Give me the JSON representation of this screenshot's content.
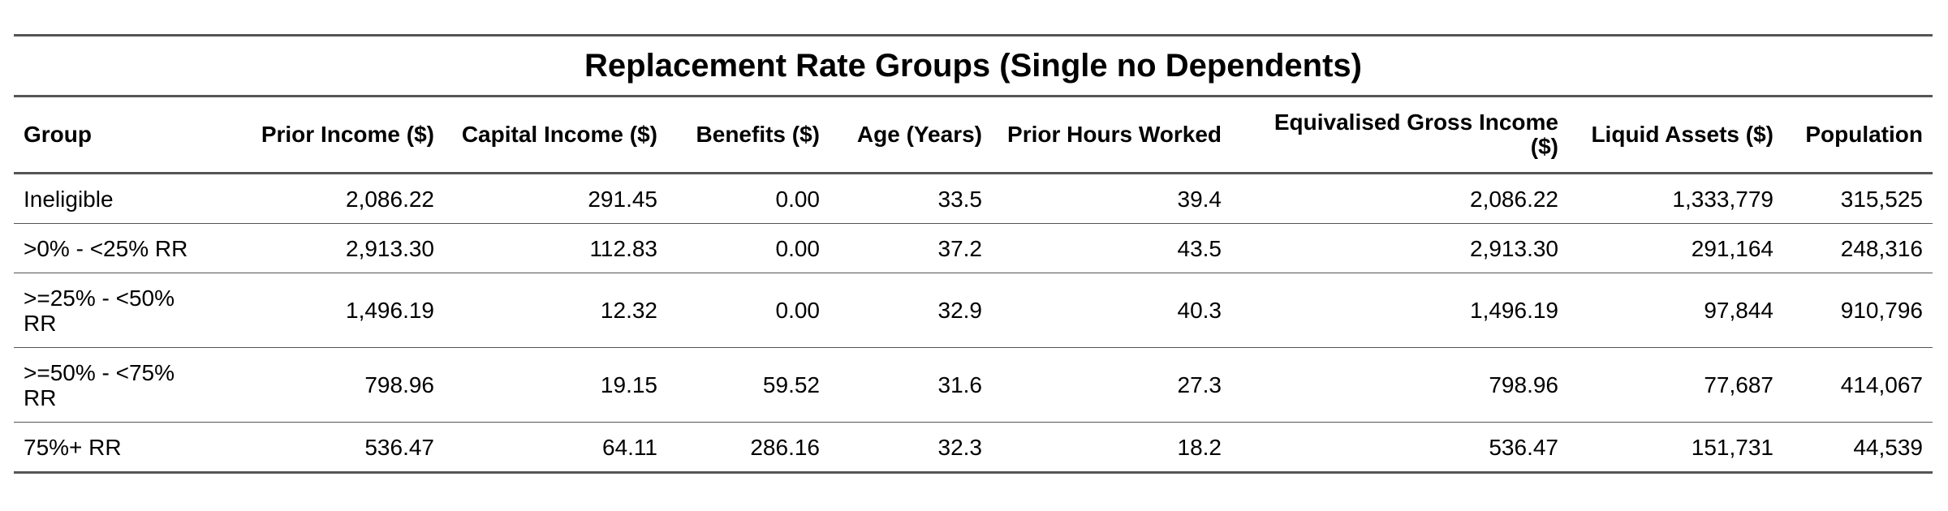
{
  "table": {
    "title": "Replacement Rate Groups (Single no Dependents)",
    "columns": [
      "Group",
      "Prior Income ($)",
      "Capital Income ($)",
      "Benefits ($)",
      "Age (Years)",
      "Prior Hours Worked",
      "Equivalised Gross Income ($)",
      "Liquid Assets ($)",
      "Population"
    ],
    "rows": [
      [
        "Ineligible",
        "2,086.22",
        "291.45",
        "0.00",
        "33.5",
        "39.4",
        "2,086.22",
        "1,333,779",
        "315,525"
      ],
      [
        ">0% - <25% RR",
        "2,913.30",
        "112.83",
        "0.00",
        "37.2",
        "43.5",
        "2,913.30",
        "291,164",
        "248,316"
      ],
      [
        ">=25% - <50% RR",
        "1,496.19",
        "12.32",
        "0.00",
        "32.9",
        "40.3",
        "1,496.19",
        "97,844",
        "910,796"
      ],
      [
        ">=50% - <75% RR",
        "798.96",
        "19.15",
        "59.52",
        "31.6",
        "27.3",
        "798.96",
        "77,687",
        "414,067"
      ],
      [
        "75%+ RR",
        "536.47",
        "64.11",
        "286.16",
        "32.3",
        "18.2",
        "536.47",
        "151,731",
        "44,539"
      ]
    ]
  }
}
